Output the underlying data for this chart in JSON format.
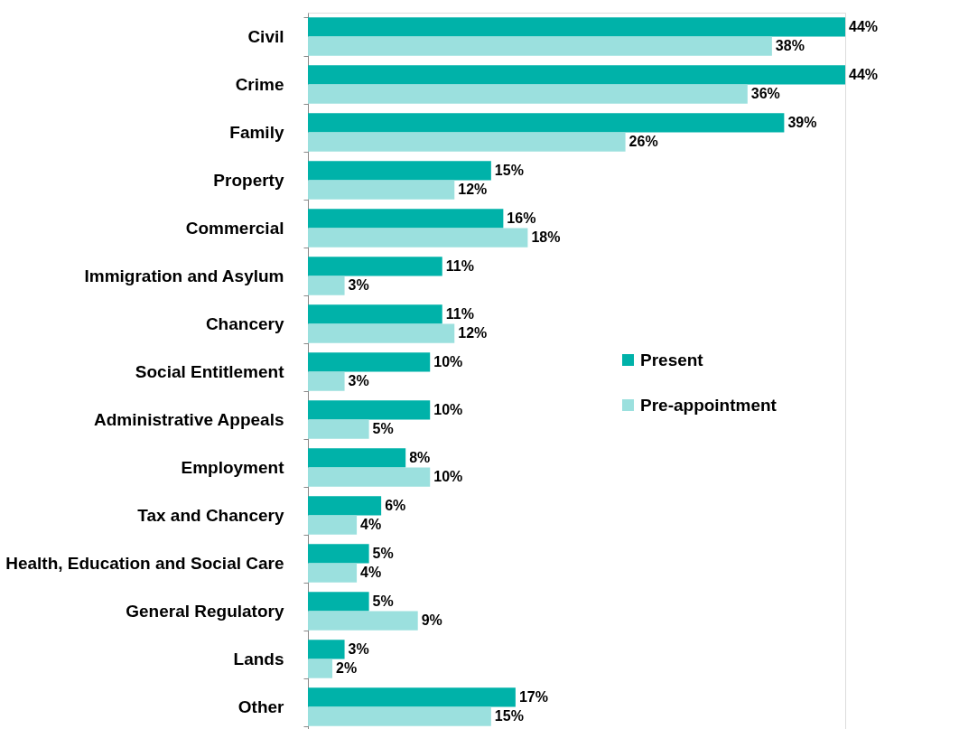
{
  "chart_data": {
    "type": "bar",
    "orientation": "horizontal",
    "grid": false,
    "legend": "right",
    "categories": [
      "Civil",
      "Crime",
      "Family",
      "Property",
      "Commercial",
      "Immigration and Asylum",
      "Chancery",
      "Social Entitlement",
      "Administrative Appeals",
      "Employment",
      "Tax and Chancery",
      "Health, Education and Social Care",
      "General Regulatory",
      "Lands",
      "Other"
    ],
    "series": [
      {
        "name": "Present",
        "color": "#00b2a9",
        "values": [
          44,
          44,
          39,
          15,
          16,
          11,
          11,
          10,
          10,
          8,
          6,
          5,
          5,
          3,
          17
        ],
        "value_labels": [
          "44%",
          "44%",
          "39%",
          "15%",
          "16%",
          "11%",
          "11%",
          "10%",
          "10%",
          "8%",
          "6%",
          "5%",
          "5%",
          "3%",
          "17%"
        ]
      },
      {
        "name": "Pre-appointment",
        "color": "#9be0de",
        "values": [
          38,
          36,
          26,
          12,
          18,
          3,
          12,
          3,
          5,
          10,
          4,
          4,
          9,
          2,
          15
        ],
        "value_labels": [
          "38%",
          "36%",
          "26%",
          "12%",
          "18%",
          "3%",
          "12%",
          "3%",
          "5%",
          "10%",
          "4%",
          "4%",
          "9%",
          "2%",
          "15%"
        ]
      }
    ]
  }
}
